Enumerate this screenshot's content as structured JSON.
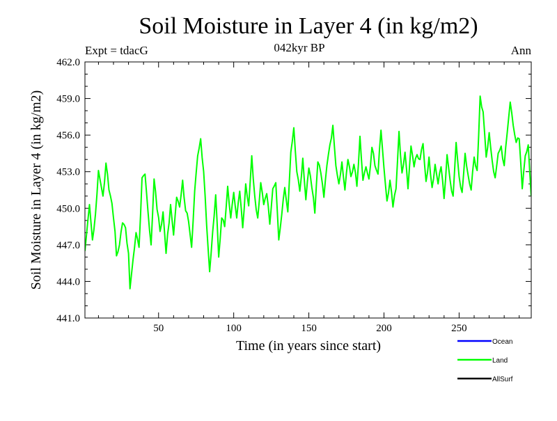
{
  "chart_data": {
    "type": "line",
    "title": "Soil Moisture in Layer 4 (in kg/m2)",
    "subtitle_left": "Expt = tdacG",
    "subtitle_center": "042kyr BP",
    "subtitle_right": "Ann",
    "xlabel": "Time (in years since start)",
    "ylabel": "Soil Moisture in Layer 4 (in kg/m2)",
    "xlim": [
      1,
      298
    ],
    "ylim": [
      441.0,
      462.0
    ],
    "xticks": [
      50,
      100,
      150,
      200,
      250
    ],
    "xtick_labels": [
      "50",
      "100",
      "150",
      "200",
      "250"
    ],
    "yticks": [
      441.0,
      444.0,
      447.0,
      450.0,
      453.0,
      456.0,
      459.0,
      462.0
    ],
    "ytick_labels": [
      "441.0",
      "444.0",
      "447.0",
      "450.0",
      "453.0",
      "456.0",
      "459.0",
      "462.0"
    ],
    "legend": [
      {
        "name": "Ocean",
        "color": "#0000ff"
      },
      {
        "name": "Land",
        "color": "#00ff00"
      },
      {
        "name": "AllSurf",
        "color": "#000000"
      }
    ],
    "series": [
      {
        "name": "Land",
        "color": "#00ff00",
        "keypoints": [
          [
            1,
            446.5
          ],
          [
            2,
            447.8
          ],
          [
            4,
            450.3
          ],
          [
            6,
            447.4
          ],
          [
            8,
            449.5
          ],
          [
            10,
            453.1
          ],
          [
            13,
            451.0
          ],
          [
            15,
            453.7
          ],
          [
            17,
            451.5
          ],
          [
            19,
            450.4
          ],
          [
            21,
            448.1
          ],
          [
            22,
            446.1
          ],
          [
            24,
            447.0
          ],
          [
            26,
            448.8
          ],
          [
            28,
            448.4
          ],
          [
            30,
            446.3
          ],
          [
            31,
            443.4
          ],
          [
            33,
            445.8
          ],
          [
            35,
            448.0
          ],
          [
            37,
            446.8
          ],
          [
            39,
            452.5
          ],
          [
            41,
            452.8
          ],
          [
            43,
            449.7
          ],
          [
            45,
            447.0
          ],
          [
            47,
            452.4
          ],
          [
            49,
            449.9
          ],
          [
            51,
            448.1
          ],
          [
            53,
            449.7
          ],
          [
            55,
            446.3
          ],
          [
            58,
            450.3
          ],
          [
            60,
            447.8
          ],
          [
            62,
            450.9
          ],
          [
            64,
            450.1
          ],
          [
            66,
            452.3
          ],
          [
            68,
            449.8
          ],
          [
            70,
            448.9
          ],
          [
            72,
            446.8
          ],
          [
            74,
            451.4
          ],
          [
            76,
            454.3
          ],
          [
            78,
            455.7
          ],
          [
            80,
            453.0
          ],
          [
            82,
            448.6
          ],
          [
            84,
            444.8
          ],
          [
            86,
            448.1
          ],
          [
            88,
            451.1
          ],
          [
            90,
            446.0
          ],
          [
            92,
            449.2
          ],
          [
            94,
            448.5
          ],
          [
            96,
            451.8
          ],
          [
            98,
            449.2
          ],
          [
            100,
            451.3
          ],
          [
            102,
            449.2
          ],
          [
            104,
            451.4
          ],
          [
            106,
            448.4
          ],
          [
            108,
            452.0
          ],
          [
            110,
            450.2
          ],
          [
            112,
            454.3
          ],
          [
            114,
            451.0
          ],
          [
            116,
            449.2
          ],
          [
            118,
            452.1
          ],
          [
            120,
            450.3
          ],
          [
            122,
            451.2
          ],
          [
            124,
            448.7
          ],
          [
            126,
            451.6
          ],
          [
            128,
            452.1
          ],
          [
            130,
            447.4
          ],
          [
            132,
            449.5
          ],
          [
            134,
            451.7
          ],
          [
            136,
            449.7
          ],
          [
            138,
            454.6
          ],
          [
            140,
            456.6
          ],
          [
            142,
            453.0
          ],
          [
            144,
            451.4
          ],
          [
            146,
            454.1
          ],
          [
            148,
            450.7
          ],
          [
            150,
            453.3
          ],
          [
            152,
            451.7
          ],
          [
            154,
            449.6
          ],
          [
            156,
            453.8
          ],
          [
            158,
            452.9
          ],
          [
            160,
            450.9
          ],
          [
            162,
            453.5
          ],
          [
            164,
            455.2
          ],
          [
            166,
            456.8
          ],
          [
            168,
            453.5
          ],
          [
            170,
            452.0
          ],
          [
            172,
            453.8
          ],
          [
            174,
            451.5
          ],
          [
            176,
            454.0
          ],
          [
            178,
            452.6
          ],
          [
            180,
            453.6
          ],
          [
            182,
            451.8
          ],
          [
            184,
            455.9
          ],
          [
            186,
            452.3
          ],
          [
            188,
            453.4
          ],
          [
            190,
            452.4
          ],
          [
            192,
            455.0
          ],
          [
            194,
            453.5
          ],
          [
            196,
            452.8
          ],
          [
            198,
            456.4
          ],
          [
            200,
            453.3
          ],
          [
            202,
            450.6
          ],
          [
            204,
            452.3
          ],
          [
            206,
            450.1
          ],
          [
            208,
            451.6
          ],
          [
            210,
            456.3
          ],
          [
            212,
            452.9
          ],
          [
            214,
            454.6
          ],
          [
            216,
            451.6
          ],
          [
            218,
            455.1
          ],
          [
            220,
            453.4
          ],
          [
            222,
            454.4
          ],
          [
            224,
            454.0
          ],
          [
            226,
            455.3
          ],
          [
            228,
            452.2
          ],
          [
            230,
            454.2
          ],
          [
            232,
            451.7
          ],
          [
            234,
            453.6
          ],
          [
            236,
            452.0
          ],
          [
            238,
            453.4
          ],
          [
            240,
            450.8
          ],
          [
            242,
            454.4
          ],
          [
            244,
            452.3
          ],
          [
            246,
            451.0
          ],
          [
            248,
            455.4
          ],
          [
            250,
            452.6
          ],
          [
            252,
            451.3
          ],
          [
            254,
            454.5
          ],
          [
            256,
            452.7
          ],
          [
            258,
            451.5
          ],
          [
            260,
            454.2
          ],
          [
            262,
            453.1
          ],
          [
            264,
            459.2
          ],
          [
            266,
            457.9
          ],
          [
            268,
            454.2
          ],
          [
            270,
            456.2
          ],
          [
            272,
            453.9
          ],
          [
            274,
            452.5
          ],
          [
            276,
            454.5
          ],
          [
            278,
            455.1
          ],
          [
            280,
            453.5
          ],
          [
            282,
            456.2
          ],
          [
            284,
            458.7
          ],
          [
            286,
            456.8
          ],
          [
            288,
            455.4
          ],
          [
            290,
            455.7
          ],
          [
            292,
            451.6
          ],
          [
            294,
            454.3
          ],
          [
            296,
            455.2
          ],
          [
            298,
            451.0
          ]
        ]
      }
    ]
  }
}
